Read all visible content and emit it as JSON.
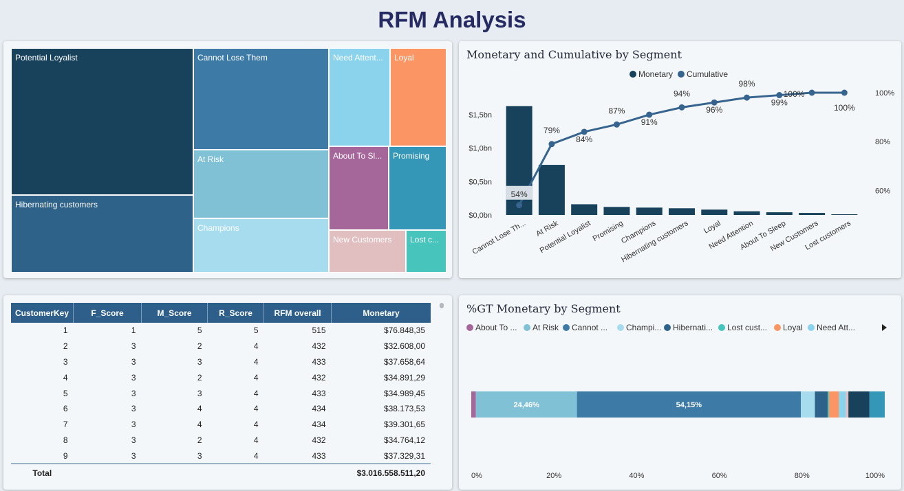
{
  "page": {
    "title": "RFM Analysis"
  },
  "treemap": {
    "cells": [
      {
        "label": "Potential Loyalist",
        "color": "#18425c"
      },
      {
        "label": "Hibernating customers",
        "color": "#2e6288"
      },
      {
        "label": "Cannot Lose Them",
        "color": "#3d7aa6"
      },
      {
        "label": "At Risk",
        "color": "#80c1d6"
      },
      {
        "label": "Champions",
        "color": "#a7dcef"
      },
      {
        "label": "Need Attent...",
        "color": "#8bd3ec"
      },
      {
        "label": "Loyal",
        "color": "#fb9664"
      },
      {
        "label": "About To Sl...",
        "color": "#a5669a"
      },
      {
        "label": "Promising",
        "color": "#3497b7"
      },
      {
        "label": "New Customers",
        "color": "#e1bfc0"
      },
      {
        "label": "Lost c...",
        "color": "#47c4bc"
      }
    ]
  },
  "chart_data": [
    {
      "type": "bar",
      "title": "Monetary and Cumulative by Segment",
      "legend": [
        "Monetary",
        "Cumulative"
      ],
      "legend_position": "top-center",
      "categories": [
        "Cannot Lose Th...",
        "At Risk",
        "Potential Loyalist",
        "Promising",
        "Champions",
        "Hibernating customers",
        "Loyal",
        "Need Attention",
        "About To Sleep",
        "New Customers",
        "Lost customers"
      ],
      "series": [
        {
          "name": "Monetary",
          "type": "bar",
          "axis": "left",
          "values": [
            1.63,
            0.75,
            0.16,
            0.12,
            0.11,
            0.1,
            0.08,
            0.055,
            0.04,
            0.03,
            0.01
          ]
        },
        {
          "name": "Cumulative",
          "type": "line",
          "axis": "right",
          "values": [
            54,
            79,
            84,
            87,
            91,
            94,
            96,
            98,
            99,
            100,
            100
          ]
        }
      ],
      "data_labels": [
        "54%",
        "79%",
        "84%",
        "87%",
        "91%",
        "94%",
        "96%",
        "98%",
        "99%",
        "100%",
        "100%"
      ],
      "y_left": {
        "ticks": [
          "$0,0bn",
          "$0,5bn",
          "$1,0bn",
          "$1,5bn"
        ],
        "range": [
          0,
          1.83
        ]
      },
      "y_right": {
        "ticks": [
          "60%",
          "80%",
          "100%"
        ],
        "range": [
          50,
          100
        ]
      }
    },
    {
      "type": "bar",
      "orientation": "horizontal-stacked-100",
      "title": "%GT Monetary by Segment",
      "legend": [
        "About To ...",
        "At Risk",
        "Cannot ...",
        "Champi...",
        "Hibernati...",
        "Lost cust...",
        "Loyal",
        "Need Att..."
      ],
      "legend_position": "top-left",
      "segments": [
        {
          "name": "About To Sleep",
          "value": 1.1,
          "color": "#a5669a"
        },
        {
          "name": "At Risk",
          "value": 24.46,
          "color": "#80c1d6",
          "label": "24,46%"
        },
        {
          "name": "Cannot Lose Them",
          "value": 54.15,
          "color": "#3d7aa6",
          "label": "54,15%"
        },
        {
          "name": "Champions",
          "value": 3.4,
          "color": "#a7dcef"
        },
        {
          "name": "Hibernating customers",
          "value": 3.1,
          "color": "#2e6288"
        },
        {
          "name": "Lost customers",
          "value": 0.3,
          "color": "#47c4bc"
        },
        {
          "name": "Loyal",
          "value": 2.4,
          "color": "#fb9664"
        },
        {
          "name": "Need Attention",
          "value": 1.7,
          "color": "#8bd3ec"
        },
        {
          "name": "New Customers",
          "value": 0.6,
          "color": "#e1bfc0"
        },
        {
          "name": "Potential Loyalist",
          "value": 5.1,
          "color": "#18425c"
        },
        {
          "name": "Promising",
          "value": 3.69,
          "color": "#3497b7"
        }
      ],
      "x_ticks": [
        "0%",
        "20%",
        "40%",
        "60%",
        "80%",
        "100%"
      ],
      "xlim": [
        0,
        100
      ]
    }
  ],
  "colors": {
    "monetary": "#18425c",
    "cumulative": "#36648f"
  },
  "table": {
    "headers": [
      "CustomerKey",
      "F_Score",
      "M_Score",
      "R_Score",
      "RFM overall",
      "Monetary"
    ],
    "rows": [
      [
        "1",
        "1",
        "5",
        "5",
        "515",
        "$76.848,35"
      ],
      [
        "2",
        "3",
        "2",
        "4",
        "432",
        "$32.608,00"
      ],
      [
        "3",
        "3",
        "3",
        "4",
        "433",
        "$37.658,64"
      ],
      [
        "4",
        "3",
        "2",
        "4",
        "432",
        "$34.891,29"
      ],
      [
        "5",
        "3",
        "3",
        "4",
        "433",
        "$34.989,45"
      ],
      [
        "6",
        "3",
        "4",
        "4",
        "434",
        "$38.173,53"
      ],
      [
        "7",
        "3",
        "4",
        "4",
        "434",
        "$39.301,65"
      ],
      [
        "8",
        "3",
        "2",
        "4",
        "432",
        "$34.764,12"
      ],
      [
        "9",
        "3",
        "3",
        "4",
        "433",
        "$37.329,31"
      ]
    ],
    "total_label": "Total",
    "total_value": "$3.016.558.511,20"
  }
}
